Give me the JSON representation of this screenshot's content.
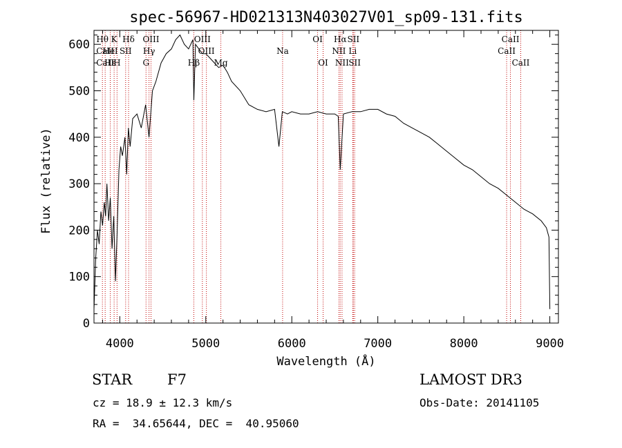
{
  "chart_data": {
    "type": "line",
    "title": "spec-56967-HD021313N403027V01_sp09-131.fits",
    "xlabel": "Wavelength (Å)",
    "ylabel": "Flux (relative)",
    "xlim": [
      3700,
      9100
    ],
    "ylim": [
      0,
      630
    ],
    "xticks": [
      4000,
      5000,
      6000,
      7000,
      8000,
      9000
    ],
    "yticks": [
      0,
      100,
      200,
      300,
      400,
      500,
      600
    ],
    "grid": false,
    "line_color": "#000000",
    "marker_color": "#c00000",
    "series": [
      {
        "x": [
          3700,
          3720,
          3740,
          3760,
          3780,
          3800,
          3820,
          3835,
          3850,
          3870,
          3890,
          3910,
          3930,
          3950,
          3970,
          3990,
          4010,
          4030,
          4060,
          4080,
          4100,
          4120,
          4150,
          4200,
          4250,
          4300,
          4340,
          4380,
          4420,
          4480,
          4540,
          4600,
          4650,
          4700,
          4750,
          4800,
          4850,
          4861,
          4880,
          4920,
          4960,
          5000,
          5050,
          5100,
          5150,
          5200,
          5250,
          5300,
          5400,
          5500,
          5600,
          5700,
          5800,
          5850,
          5890,
          5950,
          6000,
          6100,
          6200,
          6300,
          6400,
          6500,
          6540,
          6563,
          6600,
          6700,
          6800,
          6900,
          7000,
          7100,
          7200,
          7300,
          7400,
          7500,
          7600,
          7700,
          7800,
          7900,
          8000,
          8100,
          8200,
          8300,
          8400,
          8500,
          8600,
          8700,
          8800,
          8900,
          8960,
          8990,
          9000
        ],
        "y": [
          30,
          140,
          200,
          170,
          240,
          210,
          260,
          230,
          300,
          220,
          270,
          160,
          230,
          90,
          200,
          330,
          380,
          360,
          400,
          320,
          420,
          380,
          440,
          450,
          420,
          470,
          400,
          500,
          520,
          560,
          580,
          590,
          610,
          620,
          600,
          590,
          610,
          480,
          600,
          590,
          580,
          580,
          570,
          560,
          550,
          555,
          540,
          520,
          500,
          470,
          460,
          455,
          460,
          380,
          455,
          450,
          455,
          450,
          450,
          455,
          450,
          450,
          445,
          330,
          450,
          455,
          455,
          460,
          460,
          450,
          445,
          430,
          420,
          410,
          400,
          385,
          370,
          355,
          340,
          330,
          315,
          300,
          290,
          275,
          260,
          245,
          235,
          220,
          205,
          185,
          30
        ]
      }
    ],
    "lines": [
      {
        "name": "Hθ",
        "wl": 3798,
        "row": 1
      },
      {
        "name": "CaII",
        "wl": 3830,
        "row": 2
      },
      {
        "name": "CaII",
        "wl": 3830,
        "row": 3
      },
      {
        "name": "Hε",
        "wl": 3889,
        "row": 3
      },
      {
        "name": "HeI",
        "wl": 3889,
        "row": 2
      },
      {
        "name": "H",
        "wl": 3968,
        "row": 3
      },
      {
        "name": "K",
        "wl": 3934,
        "row": 1
      },
      {
        "name": "SII",
        "wl": 4068,
        "row": 2
      },
      {
        "name": "Hδ",
        "wl": 4102,
        "row": 1
      },
      {
        "name": "OIII",
        "wl": 4363,
        "row": 1
      },
      {
        "name": "Hγ",
        "wl": 4340,
        "row": 2
      },
      {
        "name": "G",
        "wl": 4305,
        "row": 3
      },
      {
        "name": "OIII",
        "wl": 4960,
        "row": 1
      },
      {
        "name": "Hβ",
        "wl": 4861,
        "row": 3
      },
      {
        "name": "OIII",
        "wl": 5007,
        "row": 2
      },
      {
        "name": "Mg",
        "wl": 5175,
        "row": 3
      },
      {
        "name": "Na",
        "wl": 5893,
        "row": 2
      },
      {
        "name": "OI",
        "wl": 6300,
        "row": 1
      },
      {
        "name": "OI",
        "wl": 6364,
        "row": 3
      },
      {
        "name": "Hα",
        "wl": 6563,
        "row": 1
      },
      {
        "name": "NII",
        "wl": 6548,
        "row": 2
      },
      {
        "name": "NII",
        "wl": 6584,
        "row": 3
      },
      {
        "name": "SII",
        "wl": 6716,
        "row": 1
      },
      {
        "name": "Li",
        "wl": 6708,
        "row": 2
      },
      {
        "name": "SII",
        "wl": 6731,
        "row": 3
      },
      {
        "name": "CaII",
        "wl": 8542,
        "row": 1
      },
      {
        "name": "CaII",
        "wl": 8498,
        "row": 2
      },
      {
        "name": "CaII",
        "wl": 8662,
        "row": 3
      }
    ]
  },
  "info": {
    "object_type": "STAR",
    "subclass": "F7",
    "survey": "LAMOST DR3",
    "cz": "cz = 18.9 ± 12.3 km/s",
    "obs_date": "Obs-Date: 20141105",
    "coords": "RA =  34.65644, DEC =  40.95060"
  }
}
